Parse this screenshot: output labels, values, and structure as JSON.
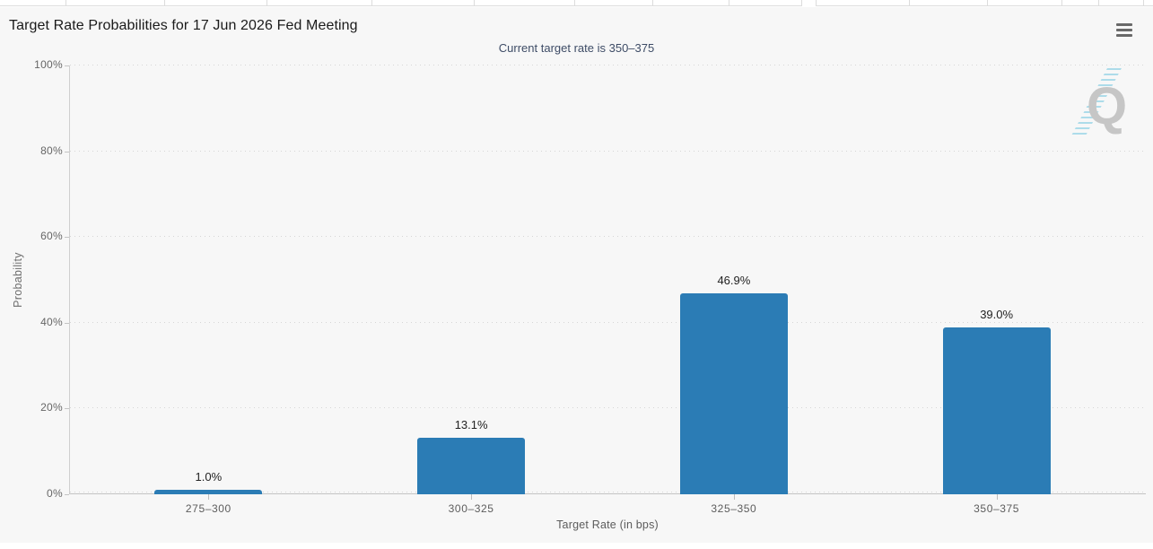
{
  "chart_data": {
    "type": "bar",
    "title": "Target Rate Probabilities for 17 Jun 2026 Fed Meeting",
    "subtitle": "Current target rate is 350–375",
    "categories": [
      "275–300",
      "300–325",
      "325–350",
      "350–375"
    ],
    "values": [
      1.0,
      13.1,
      46.9,
      39.0
    ],
    "value_labels": [
      "1.0%",
      "13.1%",
      "46.9%",
      "39.0%"
    ],
    "xlabel": "Target Rate (in bps)",
    "ylabel": "Probability",
    "ylim": [
      0,
      100
    ],
    "yticks": [
      0,
      20,
      40,
      60,
      80,
      100
    ],
    "ytick_labels": [
      "0%",
      "20%",
      "40%",
      "60%",
      "80%",
      "100%"
    ],
    "grid": "horizontal-dotted",
    "legend": "none",
    "bar_color": "#2b7cb5"
  },
  "menu": {
    "icon": "hamburger"
  },
  "watermark": {
    "letter": "Q"
  },
  "colors": {
    "panel_background": "#f7f7f7",
    "bar": "#2b7cb5",
    "title_text": "#1a1a1a",
    "subtitle_text": "#3e4c66",
    "axis_text": "#666666",
    "gridline": "#d6d6d6",
    "watermark_q": "#c6c6c6",
    "watermark_stripes": "#a5d9e8"
  }
}
